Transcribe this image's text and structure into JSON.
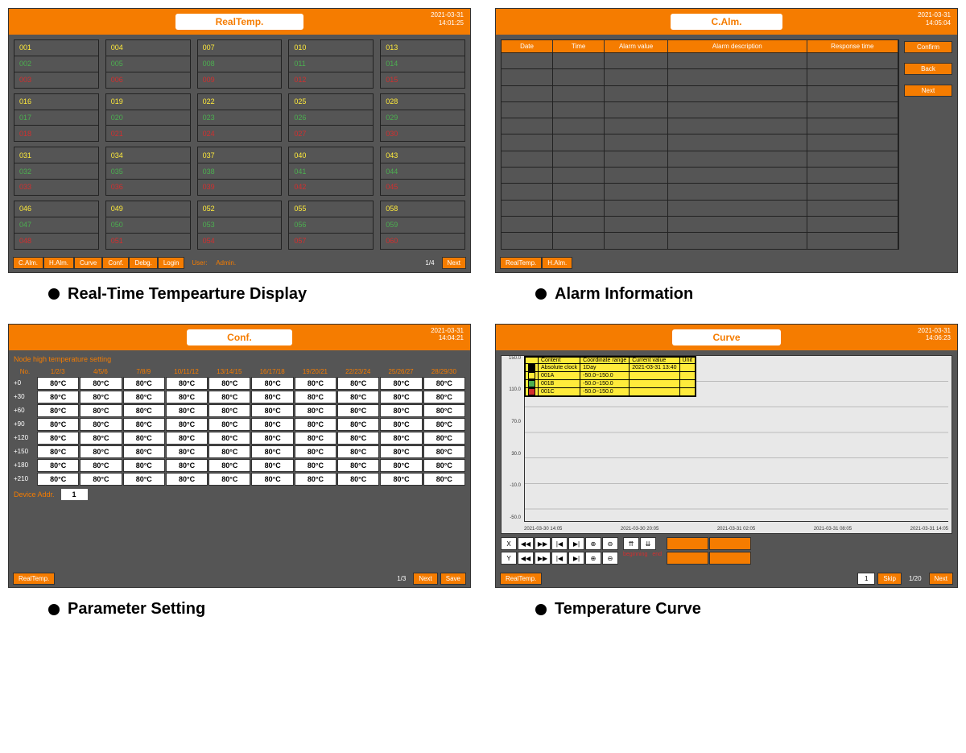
{
  "colors": {
    "orange": "#f57c00",
    "bg": "#555555",
    "yellow": "#ffeb3b",
    "green": "#4caf50",
    "red": "#d32f2f"
  },
  "captions": {
    "realtemp": "Real-Time Tempearture Display",
    "alarm": "Alarm Information",
    "conf": "Parameter Setting",
    "curve": "Temperature Curve"
  },
  "realtemp": {
    "title": "RealTemp.",
    "date": "2021-03-31",
    "time": "14:01:25",
    "blocks": [
      [
        "001",
        "002",
        "003"
      ],
      [
        "004",
        "005",
        "006"
      ],
      [
        "007",
        "008",
        "009"
      ],
      [
        "010",
        "011",
        "012"
      ],
      [
        "013",
        "014",
        "015"
      ],
      [
        "016",
        "017",
        "018"
      ],
      [
        "019",
        "020",
        "021"
      ],
      [
        "022",
        "023",
        "024"
      ],
      [
        "025",
        "026",
        "027"
      ],
      [
        "028",
        "029",
        "030"
      ],
      [
        "031",
        "032",
        "033"
      ],
      [
        "034",
        "035",
        "036"
      ],
      [
        "037",
        "038",
        "039"
      ],
      [
        "040",
        "041",
        "042"
      ],
      [
        "043",
        "044",
        "045"
      ],
      [
        "046",
        "047",
        "048"
      ],
      [
        "049",
        "050",
        "051"
      ],
      [
        "052",
        "053",
        "054"
      ],
      [
        "055",
        "056",
        "057"
      ],
      [
        "058",
        "059",
        "060"
      ]
    ],
    "footer_buttons": [
      "C.Alm.",
      "H.Alm.",
      "Curve",
      "Conf.",
      "Debg.",
      "Login"
    ],
    "user_label": "User:",
    "user_value": "Admin.",
    "page": "1/4",
    "next": "Next"
  },
  "alarm": {
    "title": "C.Alm.",
    "date": "2021-03-31",
    "time": "14:05:04",
    "columns": [
      "Date",
      "Time",
      "Alarm value",
      "Alarm description",
      "Response time"
    ],
    "col_widths": [
      "13%",
      "13%",
      "16%",
      "35%",
      "23%"
    ],
    "row_count": 12,
    "side_buttons": [
      "Confirm",
      "Back",
      "Next"
    ],
    "footer_buttons": [
      "RealTemp.",
      "H.Alm."
    ]
  },
  "conf": {
    "title": "Conf.",
    "date": "2021-03-31",
    "time": "14:04:21",
    "section": "Node high temperature setting",
    "no_label": "No.",
    "col_heads": [
      "1/2/3",
      "4/5/6",
      "7/8/9",
      "10/11/12",
      "13/14/15",
      "16/17/18",
      "19/20/21",
      "22/23/24",
      "25/26/27",
      "28/29/30"
    ],
    "row_labels": [
      "+0",
      "+30",
      "+60",
      "+90",
      "+120",
      "+150",
      "+180",
      "+210"
    ],
    "cell_value": "80°C",
    "device_label": "Device Addr.",
    "device_value": "1",
    "page": "1/3",
    "next": "Next",
    "save": "Save",
    "footer_left": "RealTemp."
  },
  "curve": {
    "title": "Curve",
    "date": "2021-03-31",
    "time": "14:06:23",
    "legend": {
      "head": [
        "Content",
        "Coordinate range",
        "Current value",
        "Unit"
      ],
      "rows": [
        {
          "swatch": "#000000",
          "name": "Absolute clock",
          "range": "1Day",
          "val": "2021-03-31 13:40",
          "unit": ""
        },
        {
          "swatch": "#ffeb3b",
          "name": "001A",
          "range": "-50.0~150.0",
          "val": "",
          "unit": ""
        },
        {
          "swatch": "#4caf50",
          "name": "001B",
          "range": "-50.0~150.0",
          "val": "",
          "unit": ""
        },
        {
          "swatch": "#d32f2f",
          "name": "001C",
          "range": "-50.0~150.0",
          "val": "",
          "unit": ""
        }
      ]
    },
    "y_ticks": [
      "150.0",
      "110.0",
      "70.0",
      "30.0",
      "-10.0",
      "-50.0"
    ],
    "x_ticks": [
      "2021-03-30 14:05",
      "2021-03-30 20:05",
      "2021-03-31 02:05",
      "2021-03-31 08:05",
      "2021-03-31 14:05"
    ],
    "axis_x": "X",
    "axis_y": "Y",
    "nav_icons": [
      "◀◀",
      "▶▶",
      "|◀",
      "▶|",
      "⊕",
      "⊖"
    ],
    "beginning": "beginning",
    "end": "end",
    "skip": "Skip",
    "next": "Next",
    "page": "1/20",
    "page_val": "1",
    "footer_left": "RealTemp."
  }
}
